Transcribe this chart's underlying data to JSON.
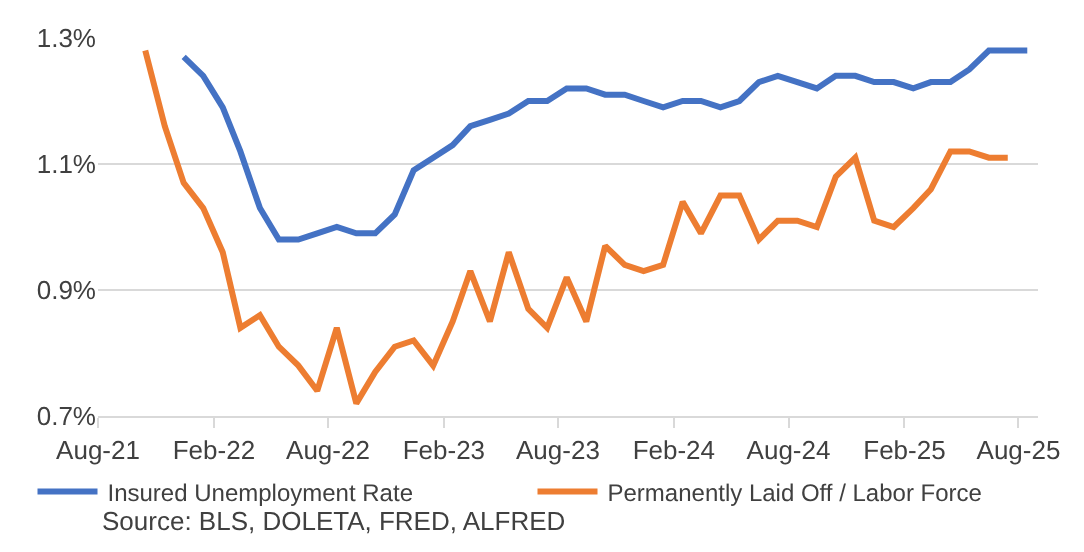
{
  "chart_data": {
    "type": "line",
    "x": [
      "2021-10-15",
      "2021-11-15",
      "2021-12-15",
      "2022-01-15",
      "2022-02-15",
      "2022-03-15",
      "2022-04-15",
      "2022-05-15",
      "2022-06-15",
      "2022-07-15",
      "2022-08-15",
      "2022-09-15",
      "2022-10-15",
      "2022-11-15",
      "2022-12-15",
      "2023-01-15",
      "2023-02-15",
      "2023-03-15",
      "2023-04-15",
      "2023-05-15",
      "2023-06-15",
      "2023-07-15",
      "2023-08-15",
      "2023-09-15",
      "2023-10-15",
      "2023-11-15",
      "2023-12-15",
      "2024-01-15",
      "2024-02-15",
      "2024-03-15",
      "2024-04-15",
      "2024-05-15",
      "2024-06-15",
      "2024-07-15",
      "2024-08-15",
      "2024-09-15",
      "2024-10-15",
      "2024-11-15",
      "2024-12-15",
      "2025-01-15",
      "2025-02-15",
      "2025-03-15",
      "2025-04-15",
      "2025-05-15",
      "2025-06-15",
      "2025-07-15",
      "2025-08-15"
    ],
    "series": [
      {
        "name": "Insured Unemployment Rate",
        "color": "#4472c4",
        "values": [
          null,
          null,
          1.27,
          1.24,
          1.19,
          1.12,
          1.03,
          0.98,
          0.98,
          0.99,
          1.0,
          0.99,
          0.99,
          1.02,
          1.09,
          1.11,
          1.13,
          1.16,
          1.17,
          1.18,
          1.2,
          1.2,
          1.22,
          1.22,
          1.21,
          1.21,
          1.2,
          1.19,
          1.2,
          1.2,
          1.19,
          1.2,
          1.23,
          1.24,
          1.23,
          1.22,
          1.24,
          1.24,
          1.23,
          1.23,
          1.22,
          1.23,
          1.23,
          1.25,
          1.28,
          1.28,
          1.28
        ]
      },
      {
        "name": "Permanently Laid Off / Labor Force",
        "color": "#ed7d31",
        "values": [
          1.28,
          1.16,
          1.07,
          1.03,
          0.96,
          0.84,
          0.86,
          0.81,
          0.78,
          0.74,
          0.84,
          0.72,
          0.77,
          0.81,
          0.82,
          0.78,
          0.85,
          0.93,
          0.85,
          0.96,
          0.87,
          0.84,
          0.92,
          0.85,
          0.97,
          0.94,
          0.93,
          0.94,
          1.04,
          0.99,
          1.05,
          1.05,
          0.98,
          1.01,
          1.01,
          1.0,
          1.08,
          1.11,
          1.01,
          1.0,
          1.03,
          1.06,
          1.12,
          1.12,
          1.11,
          1.11,
          null
        ]
      }
    ],
    "xlim": [
      "2021-08-01",
      "2025-09-01"
    ],
    "xticks": [
      {
        "value": "2021-08-01",
        "label": "Aug-21"
      },
      {
        "value": "2022-02-01",
        "label": "Feb-22"
      },
      {
        "value": "2022-08-01",
        "label": "Aug-22"
      },
      {
        "value": "2023-02-01",
        "label": "Feb-23"
      },
      {
        "value": "2023-08-01",
        "label": "Aug-23"
      },
      {
        "value": "2024-02-01",
        "label": "Feb-24"
      },
      {
        "value": "2024-08-01",
        "label": "Aug-24"
      },
      {
        "value": "2025-02-01",
        "label": "Feb-25"
      },
      {
        "value": "2025-08-01",
        "label": "Aug-25"
      }
    ],
    "ylim": [
      0.7,
      1.3
    ],
    "yticks": [
      {
        "value": 0.7,
        "label": "0.7%"
      },
      {
        "value": 0.9,
        "label": "0.9%"
      },
      {
        "value": 1.1,
        "label": "1.1%"
      },
      {
        "value": 1.3,
        "label": "1.3%"
      }
    ],
    "grid": "y",
    "legend": "bottom",
    "marker": "none",
    "line_style": "solid",
    "annotations": [
      "Source: BLS, DOLETA, FRED, ALFRED"
    ]
  }
}
